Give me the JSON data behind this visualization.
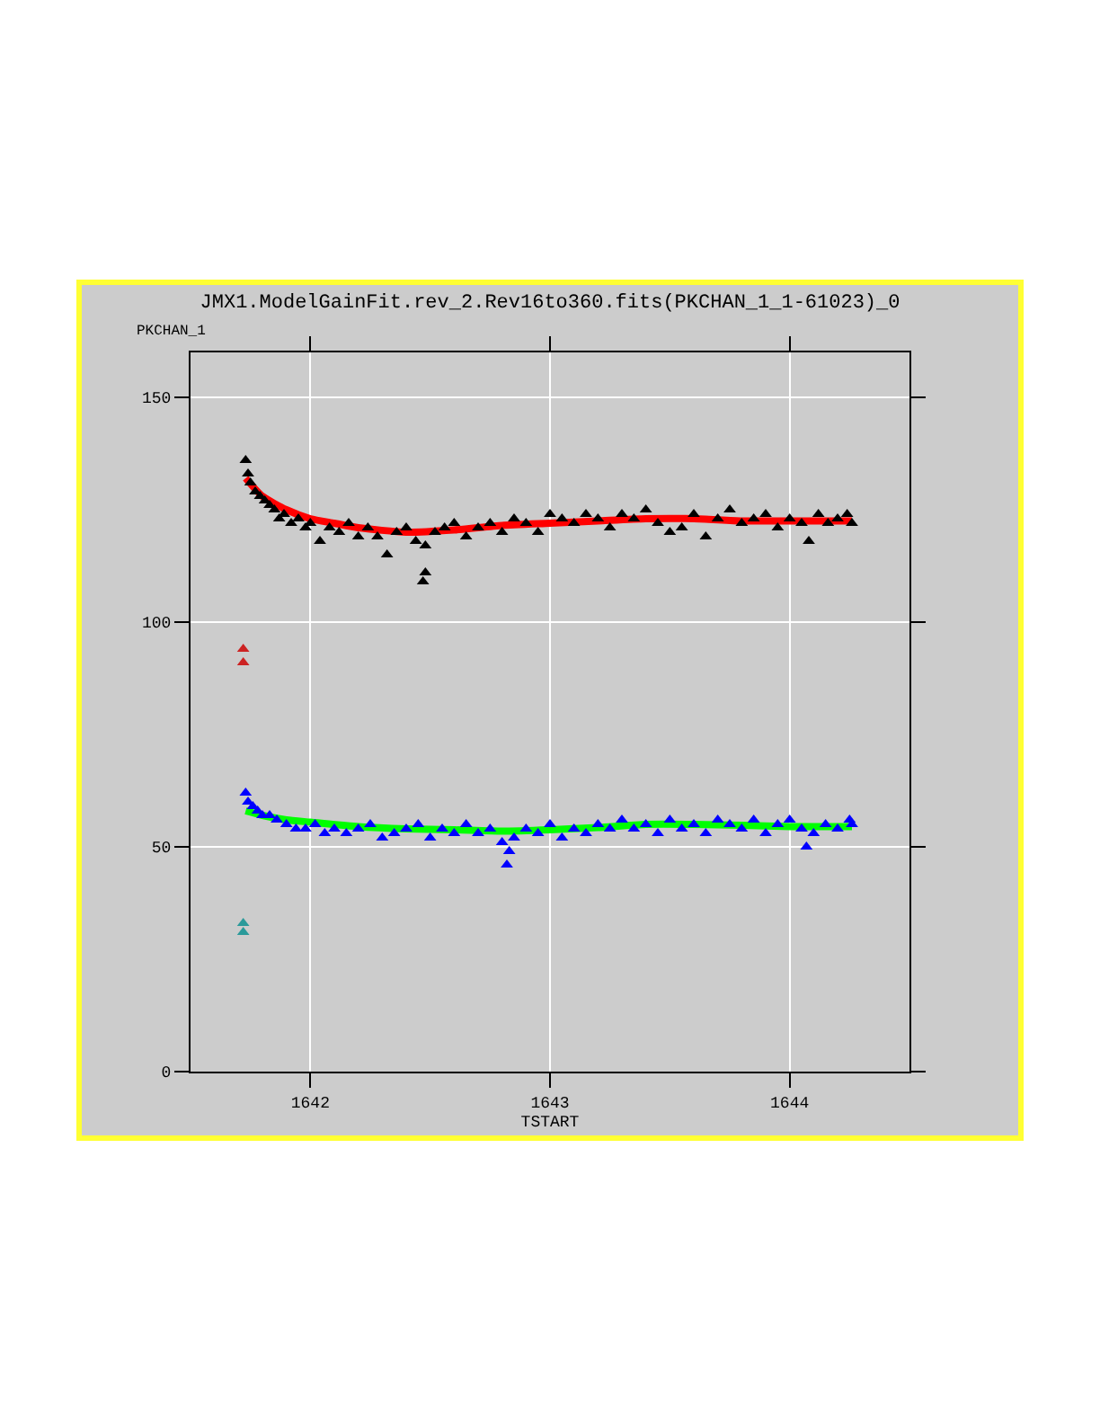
{
  "chart_data": {
    "type": "scatter",
    "title": "JMX1.ModelGainFit.rev_2.Rev16to360.fits(PKCHAN_1_1-61023)_0",
    "xlabel": "TSTART",
    "ylabel": "PKCHAN_1",
    "xlim": [
      1641.5,
      1644.5
    ],
    "xticks": [
      1642,
      1643,
      1644
    ],
    "ylim": [
      0,
      160
    ],
    "yticks": [
      0,
      50,
      100,
      150
    ],
    "grid": true,
    "marker": "triangle",
    "series": [
      {
        "color": "#000000",
        "x": [
          1641.73,
          1641.74,
          1641.75,
          1641.77,
          1641.79,
          1641.81,
          1641.83,
          1641.85,
          1641.87,
          1641.89,
          1641.92,
          1641.95,
          1641.98,
          1642.0,
          1642.04,
          1642.08,
          1642.12,
          1642.16,
          1642.2,
          1642.24,
          1642.28,
          1642.32,
          1642.36,
          1642.4,
          1642.44,
          1642.47,
          1642.48,
          1642.48,
          1642.52,
          1642.56,
          1642.6,
          1642.65,
          1642.7,
          1642.75,
          1642.8,
          1642.85,
          1642.9,
          1642.95,
          1643.0,
          1643.05,
          1643.1,
          1643.15,
          1643.2,
          1643.25,
          1643.3,
          1643.35,
          1643.4,
          1643.45,
          1643.5,
          1643.55,
          1643.6,
          1643.65,
          1643.7,
          1643.75,
          1643.8,
          1643.85,
          1643.9,
          1643.95,
          1644.0,
          1644.05,
          1644.08,
          1644.12,
          1644.16,
          1644.2,
          1644.24,
          1644.26
        ],
        "values": [
          136,
          133,
          131,
          129,
          128,
          127,
          126,
          125,
          123,
          124,
          122,
          123,
          121,
          122,
          118,
          121,
          120,
          122,
          119,
          121,
          119,
          115,
          120,
          121,
          118,
          109,
          111,
          117,
          120,
          121,
          122,
          119,
          121,
          122,
          120,
          123,
          122,
          120,
          124,
          123,
          122,
          124,
          123,
          121,
          124,
          123,
          125,
          122,
          120,
          121,
          124,
          119,
          123,
          125,
          122,
          123,
          124,
          121,
          123,
          122,
          118,
          124,
          122,
          123,
          124,
          122
        ]
      },
      {
        "type": "line",
        "marker": "none",
        "color": "#ff0000",
        "x": [
          1641.73,
          1641.8,
          1641.9,
          1642.0,
          1642.1,
          1642.2,
          1642.4,
          1642.6,
          1642.8,
          1643.0,
          1643.2,
          1643.4,
          1643.6,
          1643.8,
          1644.0,
          1644.26
        ],
        "values": [
          132,
          128,
          125,
          123,
          122,
          121,
          120,
          120.5,
          121.5,
          122,
          122.5,
          123,
          123,
          122.5,
          122.5,
          122.5
        ]
      },
      {
        "color": "#0000ff",
        "x": [
          1641.73,
          1641.74,
          1641.76,
          1641.78,
          1641.8,
          1641.83,
          1641.86,
          1641.9,
          1641.94,
          1641.98,
          1642.02,
          1642.06,
          1642.1,
          1642.15,
          1642.2,
          1642.25,
          1642.3,
          1642.35,
          1642.4,
          1642.45,
          1642.5,
          1642.55,
          1642.6,
          1642.65,
          1642.7,
          1642.75,
          1642.8,
          1642.82,
          1642.83,
          1642.85,
          1642.9,
          1642.95,
          1643.0,
          1643.05,
          1643.1,
          1643.15,
          1643.2,
          1643.25,
          1643.3,
          1643.35,
          1643.4,
          1643.45,
          1643.5,
          1643.55,
          1643.6,
          1643.65,
          1643.7,
          1643.75,
          1643.8,
          1643.85,
          1643.9,
          1643.95,
          1644.0,
          1644.05,
          1644.07,
          1644.1,
          1644.15,
          1644.2,
          1644.25,
          1644.26
        ],
        "values": [
          62,
          60,
          59,
          58,
          57,
          57,
          56,
          55,
          54,
          54,
          55,
          53,
          54,
          53,
          54,
          55,
          52,
          53,
          54,
          55,
          52,
          54,
          53,
          55,
          53,
          54,
          51,
          46,
          49,
          52,
          54,
          53,
          55,
          52,
          54,
          53,
          55,
          54,
          56,
          54,
          55,
          53,
          56,
          54,
          55,
          53,
          56,
          55,
          54,
          56,
          53,
          55,
          56,
          54,
          50,
          53,
          55,
          54,
          56,
          55
        ]
      },
      {
        "type": "line",
        "marker": "none",
        "color": "#00ff00",
        "x": [
          1641.73,
          1641.8,
          1641.9,
          1642.0,
          1642.2,
          1642.4,
          1642.6,
          1642.8,
          1643.0,
          1643.2,
          1643.4,
          1643.6,
          1643.8,
          1644.0,
          1644.26
        ],
        "values": [
          58,
          57,
          56,
          55.5,
          54.5,
          54,
          53.8,
          53.5,
          53.8,
          54.3,
          55,
          55,
          54.8,
          54.5,
          54.5
        ]
      },
      {
        "color": "#cc2222",
        "x": [
          1641.72,
          1641.72
        ],
        "values": [
          94,
          91
        ]
      },
      {
        "color": "#2a9a9a",
        "x": [
          1641.72,
          1641.72
        ],
        "values": [
          33,
          31
        ]
      }
    ]
  }
}
